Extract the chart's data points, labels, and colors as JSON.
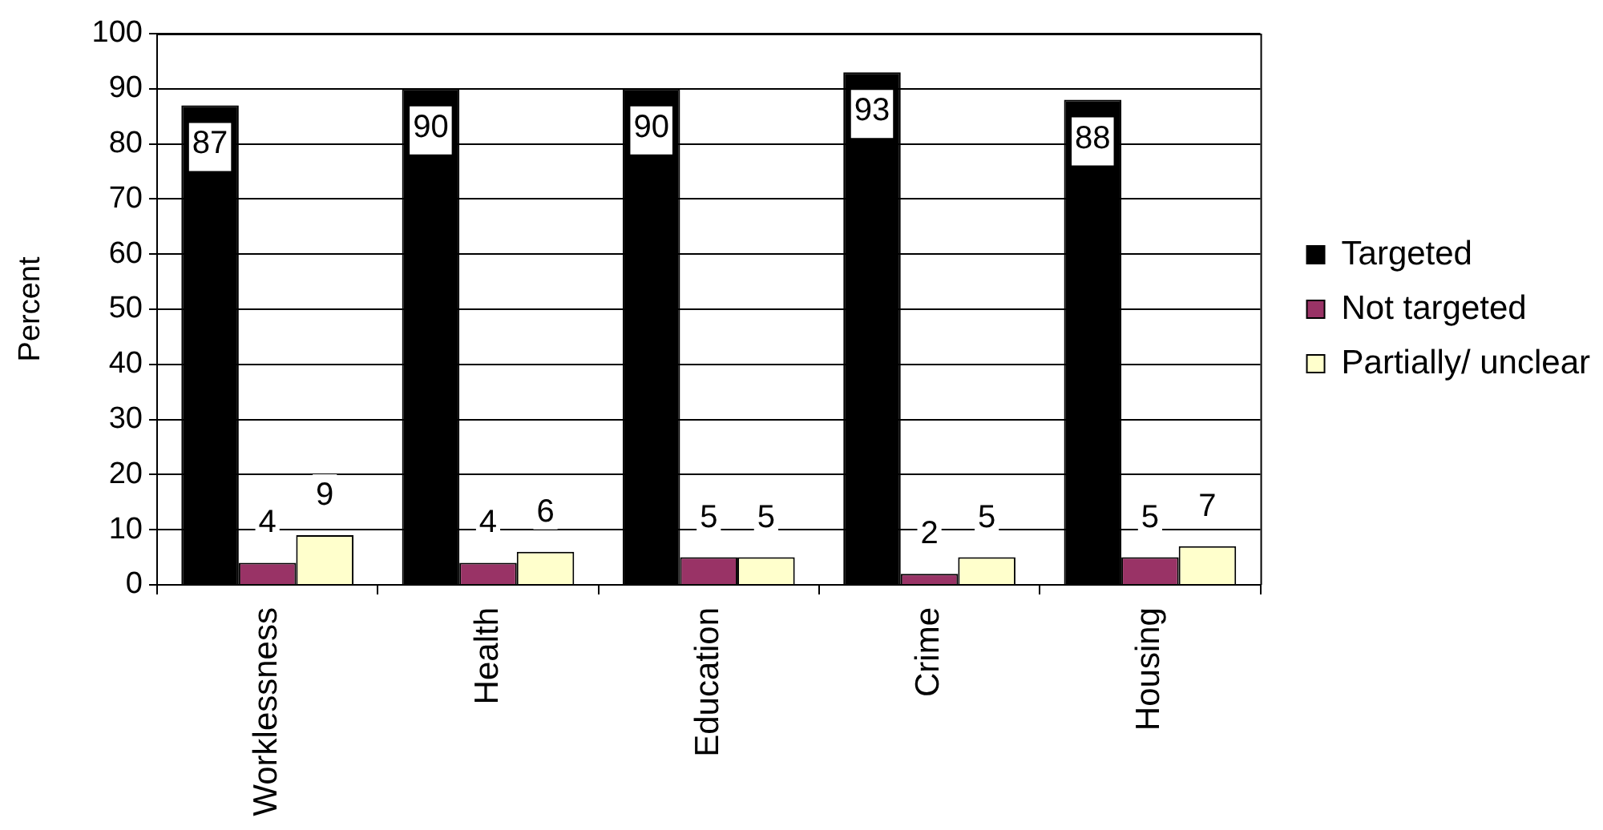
{
  "chart_data": {
    "type": "bar",
    "ylabel": "Percent",
    "categories": [
      "Worklessness",
      "Health",
      "Education",
      "Crime",
      "Housing"
    ],
    "series": [
      {
        "name": "Targeted",
        "color": "#000000",
        "values": [
          87,
          90,
          90,
          93,
          88
        ]
      },
      {
        "name": "Not targeted",
        "color": "#993366",
        "values": [
          4,
          4,
          5,
          2,
          5
        ]
      },
      {
        "name": "Partially/ unclear",
        "color": "#ffffcc",
        "values": [
          9,
          6,
          5,
          5,
          7
        ]
      }
    ],
    "ylim": [
      0,
      100
    ],
    "yticks": [
      0,
      10,
      20,
      30,
      40,
      50,
      60,
      70,
      80,
      90,
      100
    ],
    "grid": "y",
    "legend": "right",
    "data_labels": true
  }
}
